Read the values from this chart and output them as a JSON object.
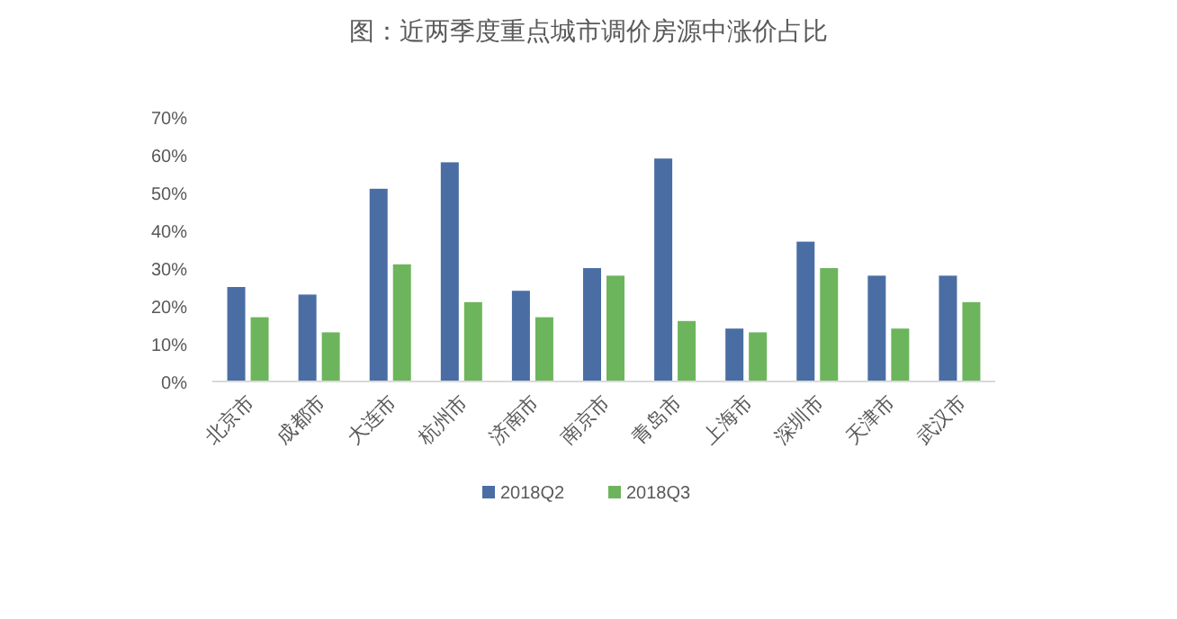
{
  "chart_data": {
    "type": "bar",
    "title": "图：近两季度重点城市调价房源中涨价占比",
    "categories": [
      "北京市",
      "成都市",
      "大连市",
      "杭州市",
      "济南市",
      "南京市",
      "青岛市",
      "上海市",
      "深圳市",
      "天津市",
      "武汉市"
    ],
    "series": [
      {
        "name": "2018Q2",
        "color": "#4a6ea4",
        "values": [
          25,
          23,
          51,
          58,
          24,
          30,
          59,
          14,
          37,
          28,
          28
        ]
      },
      {
        "name": "2018Q3",
        "color": "#6cb55c",
        "values": [
          17,
          13,
          31,
          21,
          17,
          28,
          16,
          13,
          30,
          14,
          21
        ]
      }
    ],
    "ylim": [
      0,
      70
    ],
    "yticks": [
      {
        "value": 0,
        "label": "0%"
      },
      {
        "value": 10,
        "label": "10%"
      },
      {
        "value": 20,
        "label": "20%"
      },
      {
        "value": 30,
        "label": "30%"
      },
      {
        "value": 40,
        "label": "40%"
      },
      {
        "value": 50,
        "label": "50%"
      },
      {
        "value": 60,
        "label": "60%"
      },
      {
        "value": 70,
        "label": "70%"
      }
    ],
    "grid": false,
    "legend": "bottom"
  }
}
